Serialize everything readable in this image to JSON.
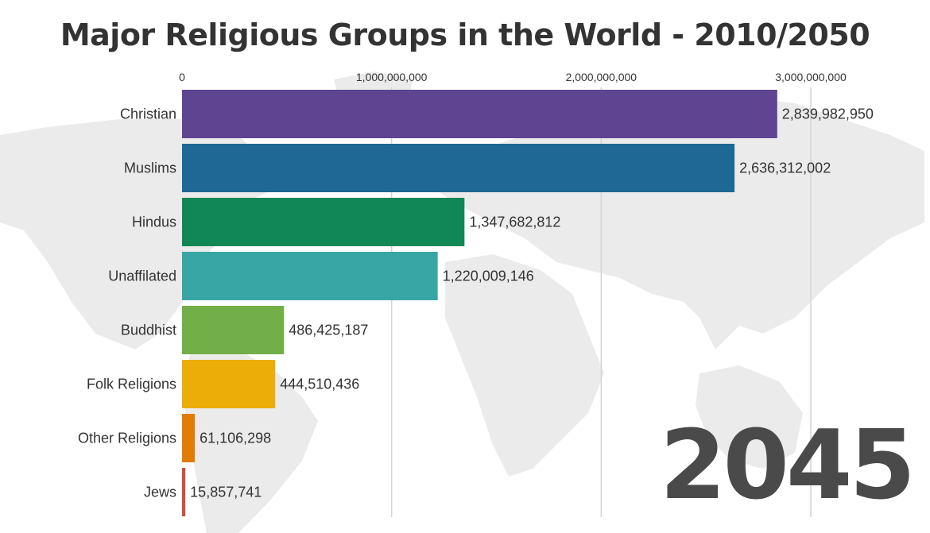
{
  "chart_data": {
    "type": "bar",
    "orientation": "horizontal",
    "title": "Major Religious Groups in the World - 2010/2050",
    "frame_label": "2045",
    "x_ticks": [
      0,
      1000000000,
      2000000000,
      3000000000
    ],
    "x_tick_labels": [
      "0",
      "1,000,000,000",
      "2,000,000,000",
      "3,000,000,000"
    ],
    "xlim": [
      0,
      3000000000
    ],
    "grid": true,
    "categories": [
      "Christian",
      "Muslims",
      "Hindus",
      "Unaffilated",
      "Buddhist",
      "Folk Religions",
      "Other Religions",
      "Jews"
    ],
    "values": [
      2839982950,
      2636312002,
      1347682812,
      1220009146,
      486425187,
      444510436,
      61106298,
      15857741
    ],
    "value_labels": [
      "2,839,982,950",
      "2,636,312,002",
      "1,347,682,812",
      "1,220,009,146",
      "486,425,187",
      "444,510,436",
      "61,106,298",
      "15,857,741"
    ],
    "colors": [
      "#5E4491",
      "#1D6894",
      "#108755",
      "#38A6A5",
      "#73AF48",
      "#EDAD08",
      "#E17C05",
      "#CC503E"
    ]
  },
  "background": {
    "map_color": "#ebebeb"
  }
}
